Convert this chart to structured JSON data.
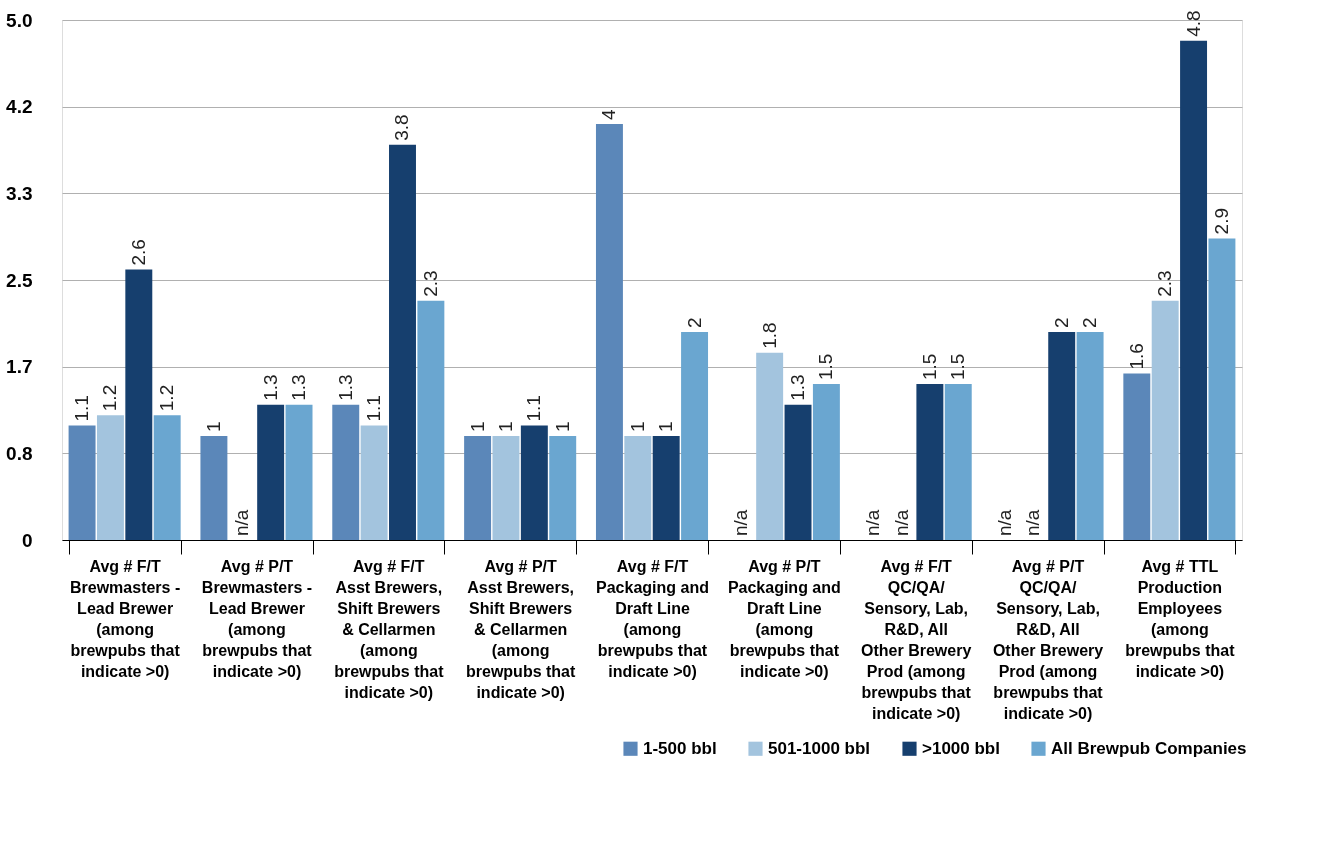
{
  "chart_data": {
    "type": "bar",
    "categories": [
      "Avg # F/T Brewmasters - Lead Brewer (among brewpubs that indicate >0)",
      "Avg # P/T Brewmasters - Lead Brewer (among brewpubs that indicate >0)",
      "Avg # F/T Asst Brewers, Shift Brewers & Cellarmen (among brewpubs that indicate >0)",
      "Avg # P/T Asst Brewers, Shift Brewers & Cellarmen (among brewpubs that indicate >0)",
      "Avg # F/T Packaging and Draft Line (among brewpubs that indicate >0)",
      "Avg # P/T Packaging and Draft Line (among brewpubs that indicate >0)",
      "Avg # F/T QC/QA/ Sensory, Lab, R&D, All Other Brewery Prod (among brewpubs that indicate >0)",
      "Avg # P/T QC/QA/ Sensory, Lab, R&D, All Other Brewery Prod (among brewpubs that indicate >0)",
      "Avg # TTL Production Employees (among brewpubs that indicate >0)"
    ],
    "series": [
      {
        "name": "1-500 bbl",
        "color": "#5b87b9",
        "values": [
          1.1,
          1,
          1.3,
          1,
          4,
          null,
          null,
          null,
          1.6
        ],
        "value_labels": [
          "1.1",
          "1",
          "1.3",
          "1",
          "4",
          "n/a",
          "n/a",
          "n/a",
          "1.6"
        ]
      },
      {
        "name": "501-1000 bbl",
        "color": "#a3c4de",
        "values": [
          1.2,
          null,
          1.1,
          1,
          1,
          1.8,
          null,
          null,
          2.3
        ],
        "value_labels": [
          "1.2",
          "n/a",
          "1.1",
          "1",
          "1",
          "1.8",
          "n/a",
          "n/a",
          "2.3"
        ]
      },
      {
        "name": ">1000 bbl",
        "color": "#163f6e",
        "values": [
          2.6,
          1.3,
          3.8,
          1.1,
          1,
          1.3,
          1.5,
          2,
          4.8
        ],
        "value_labels": [
          "2.6",
          "1.3",
          "3.8",
          "1.1",
          "1",
          "1.3",
          "1.5",
          "2",
          "4.8"
        ]
      },
      {
        "name": "All Brewpub Companies",
        "color": "#6aa6d0",
        "values": [
          1.2,
          1.3,
          2.3,
          1,
          2,
          1.5,
          1.5,
          2,
          2.9
        ],
        "value_labels": [
          "1.2",
          "1.3",
          "2.3",
          "1",
          "2",
          "1.5",
          "1.5",
          "2",
          "2.9"
        ]
      }
    ],
    "ylim": [
      0,
      5
    ],
    "yticks": [
      0,
      {
        "value": 0.833,
        "label": "0.8"
      },
      {
        "value": 1.667,
        "label": "1.7"
      },
      2.5,
      {
        "value": 3.333,
        "label": "3.3"
      },
      {
        "value": 4.167,
        "label": "4.2"
      },
      {
        "value": 5,
        "label": "5.0"
      }
    ],
    "grid": "y",
    "legend": "bottom right"
  }
}
